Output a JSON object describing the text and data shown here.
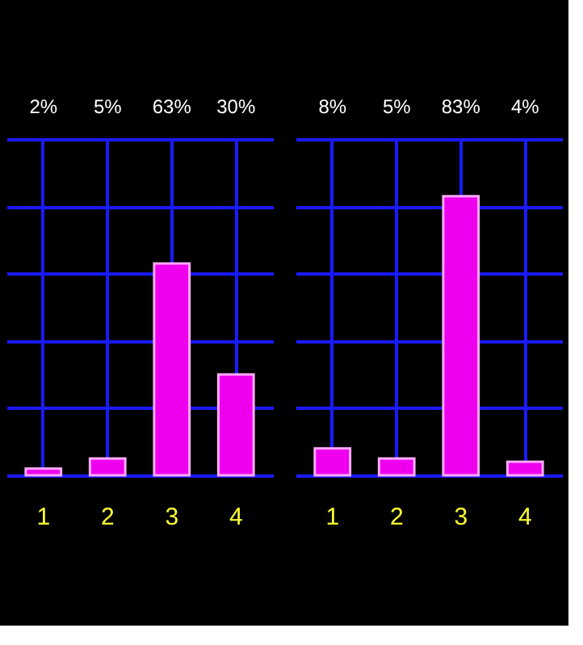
{
  "chart_data": [
    {
      "type": "bar",
      "categories": [
        "1",
        "2",
        "3",
        "4"
      ],
      "values": [
        2,
        5,
        63,
        30
      ],
      "value_labels": [
        "2%",
        "5%",
        "63%",
        "30%"
      ],
      "color": "#ee00ee",
      "ylim": [
        0,
        100
      ],
      "yticks": [
        {
          "value": 0,
          "label": null
        },
        {
          "value": 20,
          "label": null
        },
        {
          "value": 40,
          "label": null
        },
        {
          "value": 60,
          "label": null
        },
        {
          "value": 80,
          "label": null
        },
        {
          "value": 100,
          "label": null
        }
      ],
      "grid": true,
      "tick_labels": "x"
    },
    {
      "type": "bar",
      "categories": [
        "1",
        "2",
        "3",
        "4"
      ],
      "values": [
        8,
        5,
        83,
        4
      ],
      "value_labels": [
        "8%",
        "5%",
        "83%",
        "4%"
      ],
      "color": "#ee00ee",
      "ylim": [
        0,
        100
      ],
      "yticks": [
        {
          "value": 0,
          "label": null
        },
        {
          "value": 20,
          "label": null
        },
        {
          "value": 40,
          "label": null
        },
        {
          "value": 60,
          "label": null
        },
        {
          "value": 80,
          "label": null
        },
        {
          "value": 100,
          "label": null
        }
      ],
      "grid": true,
      "tick_labels": "x"
    }
  ]
}
